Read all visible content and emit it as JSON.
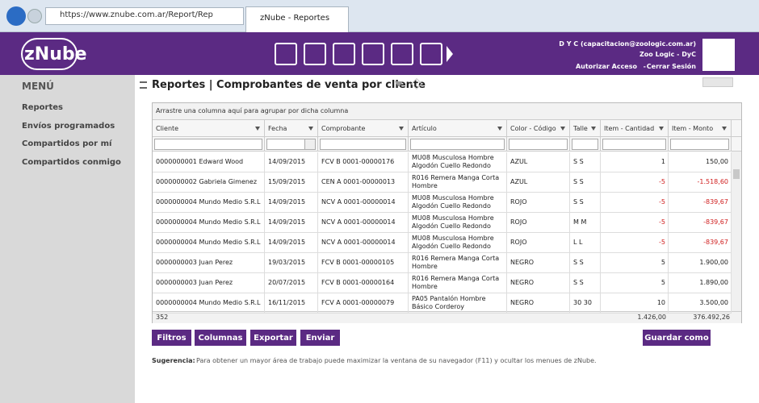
{
  "browser": {
    "url": "https://www.znube.com.ar/Report/ReportView?i",
    "tab": "zNube - Reportes"
  },
  "header": {
    "logo": "zNube",
    "user": "D Y C (capacitacion@zoologic.com.ar)",
    "company": "Zoo Logic - DyC",
    "links": [
      "Autorizar Acceso",
      "Cerrar Sesión"
    ],
    "separator": "-"
  },
  "sidebar": {
    "title": "MENÚ",
    "items": [
      "Reportes",
      "Envíos programados",
      "Compartidos por mí",
      "Compartidos conmigo"
    ]
  },
  "report": {
    "title": "Reportes | Comprobantes de venta por cliente",
    "group_hint": "Arrastre una columna aquí para agrupar por dicha columna"
  },
  "table": {
    "columns": [
      "Cliente",
      "Fecha",
      "Comprobante",
      "Artículo",
      "Color - Código",
      "Talle",
      "Item - Cantidad",
      "Item - Monto"
    ],
    "rows": [
      [
        "0000000001 Edward Wood",
        "14/09/2015",
        "FCV B 0001-00000176",
        "MU08 Musculosa Hombre Algodón Cuello Redondo",
        "AZUL",
        "S S",
        "1",
        "150,00"
      ],
      [
        "0000000002 Gabriela Gimenez",
        "15/09/2015",
        "CEN A 0001-00000013",
        "R016 Remera Manga Corta Hombre",
        "AZUL",
        "S S",
        "-5",
        "-1.518,60"
      ],
      [
        "0000000004 Mundo Medio S.R.L",
        "14/09/2015",
        "NCV A 0001-00000014",
        "MU08 Musculosa Hombre Algodón Cuello Redondo",
        "ROJO",
        "S S",
        "-5",
        "-839,67"
      ],
      [
        "0000000004 Mundo Medio S.R.L",
        "14/09/2015",
        "NCV A 0001-00000014",
        "MU08 Musculosa Hombre Algodón Cuello Redondo",
        "ROJO",
        "M M",
        "-5",
        "-839,67"
      ],
      [
        "0000000004 Mundo Medio S.R.L",
        "14/09/2015",
        "NCV A 0001-00000014",
        "MU08 Musculosa Hombre Algodón Cuello Redondo",
        "ROJO",
        "L L",
        "-5",
        "-839,67"
      ],
      [
        "0000000003 Juan Perez",
        "19/03/2015",
        "FCV B 0001-00000105",
        "R016 Remera Manga Corta Hombre",
        "NEGRO",
        "S S",
        "5",
        "1.900,00"
      ],
      [
        "0000000003 Juan Perez",
        "20/07/2015",
        "FCV B 0001-00000164",
        "R016 Remera Manga Corta Hombre",
        "NEGRO",
        "S S",
        "5",
        "1.890,00"
      ],
      [
        "0000000004 Mundo Medio S.R.L",
        "16/11/2015",
        "FCV A 0001-00000079",
        "PA05 Pantalón Hombre Básico Corderoy",
        "NEGRO",
        "30 30",
        "10",
        "3.500,00"
      ]
    ],
    "footer": {
      "count": "352",
      "quantity": "1.426,00",
      "amount": "376.492,26"
    }
  },
  "buttons": [
    "Filtros",
    "Columnas",
    "Exportar",
    "Enviar"
  ],
  "save_button": "Guardar como",
  "tip": {
    "label": "Sugerencia:",
    "text": "Para obtener un mayor área de trabajo puede maximizar la ventana de su navegador (F11) y ocultar los menues de zNube."
  }
}
